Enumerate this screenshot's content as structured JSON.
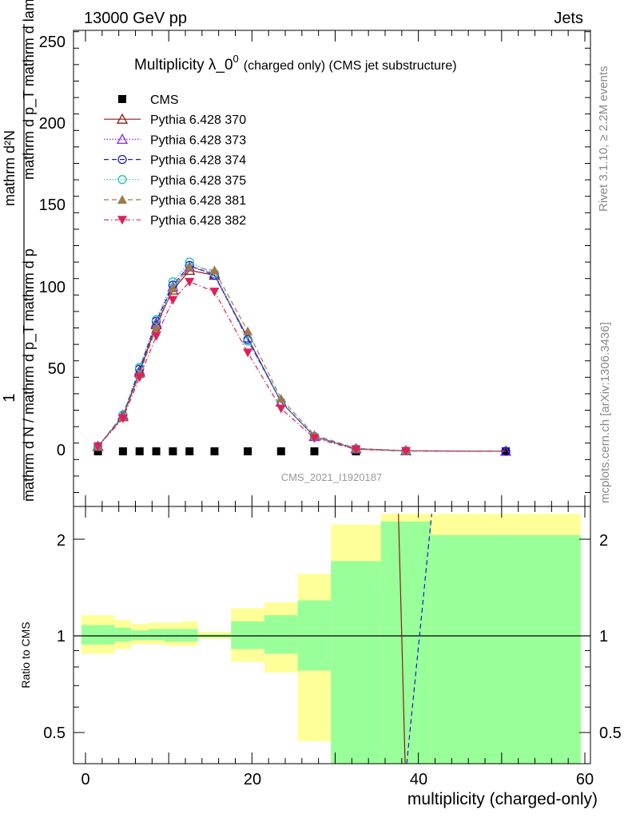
{
  "header": {
    "left": "13000 GeV pp",
    "right": "Jets"
  },
  "side": {
    "rivet": "Rivet 3.1.10, ≥ 2.2M events",
    "mcplots": "mcplots.cern.ch [arXiv:1306.3436]"
  },
  "main": {
    "title_main": "Multiplicity λ_0",
    "title_sup": "0",
    "title_rest": "(charged only) (CMS jet substructure)",
    "ylabel_num": "1",
    "ylabel_den": "mathrm d N / mathrm d p_T mathrm d p",
    "ylabel_num2": "mathrm d²N",
    "ylabel_num3": "mathrm d p_T mathrm d lambda",
    "watermark": "CMS_2021_I1920187",
    "yticks": [
      "0",
      "50",
      "100",
      "150",
      "200",
      "250"
    ]
  },
  "ratio": {
    "ylabel": "Ratio to CMS",
    "yticks": [
      "0.5",
      "1",
      "2"
    ],
    "xticks": [
      "0",
      "20",
      "40",
      "60"
    ],
    "xlabel": "multiplicity (charged-only)"
  },
  "colors": {
    "cms": "#000000",
    "p370": "#8b1a1a",
    "p373": "#8a2be2",
    "p374": "#1a1acd",
    "p375": "#20c0b0",
    "p381": "#a0784a",
    "p382": "#e0205a",
    "band_outer": "#ffff99",
    "band_inner": "#99ff99"
  },
  "chart_data": [
    {
      "type": "line",
      "xlim": [
        -1,
        60
      ],
      "ylim": [
        -30,
        260
      ],
      "series": [
        {
          "name": "CMS",
          "style": "square",
          "x": [
            1.5,
            4.5,
            6.5,
            8.5,
            10.5,
            12.5,
            15.5,
            19.5,
            23.5,
            27.5,
            32.5,
            38.5,
            50.5
          ],
          "y": [
            0,
            0,
            0,
            0,
            0,
            0,
            0,
            0,
            0,
            0,
            0,
            0,
            0
          ]
        },
        {
          "name": "Pythia 6.428 370",
          "style": "tri-open",
          "x": [
            1.5,
            4.5,
            6.5,
            8.5,
            10.5,
            12.5,
            15.5,
            19.5,
            23.5,
            27.5,
            32.5,
            38.5,
            50.5
          ],
          "y": [
            3,
            21,
            48,
            77,
            98,
            110,
            107,
            69,
            30,
            9,
            1.5,
            0.3,
            0.05
          ]
        },
        {
          "name": "Pythia 6.428 373",
          "style": "tri-open",
          "x": [
            1.5,
            4.5,
            6.5,
            8.5,
            10.5,
            12.5,
            15.5,
            19.5,
            23.5,
            27.5,
            32.5,
            38.5,
            50.5
          ],
          "y": [
            3,
            22,
            49,
            78,
            100,
            112,
            108,
            69,
            30,
            9,
            1.5,
            0.3,
            0.05
          ]
        },
        {
          "name": "Pythia 6.428 374",
          "style": "circle-open",
          "x": [
            1.5,
            4.5,
            6.5,
            8.5,
            10.5,
            12.5,
            15.5,
            19.5,
            23.5,
            27.5,
            32.5,
            38.5,
            50.5
          ],
          "y": [
            3,
            22,
            50,
            79,
            101,
            113,
            107,
            68,
            30,
            9,
            1.5,
            0.3,
            0.05
          ]
        },
        {
          "name": "Pythia 6.428 375",
          "style": "circle-open",
          "x": [
            1.5,
            4.5,
            6.5,
            8.5,
            10.5,
            12.5,
            15.5,
            19.5,
            23.5,
            27.5,
            32.5,
            38.5,
            50.5
          ],
          "y": [
            3,
            22,
            51,
            80,
            103,
            115,
            108,
            67,
            30,
            9,
            1.5,
            0.3,
            0.05
          ]
        },
        {
          "name": "Pythia 6.428 381",
          "style": "tri-filled",
          "x": [
            1.5,
            4.5,
            6.5,
            8.5,
            10.5,
            12.5,
            15.5,
            19.5,
            23.5,
            27.5,
            32.5,
            38.5,
            50.5
          ],
          "y": [
            3,
            21,
            47,
            75,
            99,
            112,
            110,
            73,
            32,
            10,
            1.8,
            0.4,
            0.05
          ]
        },
        {
          "name": "Pythia 6.428 382",
          "style": "tri-down-filled",
          "x": [
            1.5,
            4.5,
            6.5,
            8.5,
            10.5,
            12.5,
            15.5,
            19.5,
            23.5,
            27.5,
            32.5,
            38.5,
            50.5
          ],
          "y": [
            3,
            20,
            45,
            70,
            92,
            103,
            97,
            60,
            26,
            8,
            1.2,
            0.2,
            0.05
          ]
        }
      ],
      "legend": "top-left"
    },
    {
      "type": "area",
      "xlim": [
        -1,
        60
      ],
      "ylog": true,
      "ylim": [
        0.4,
        2.4
      ],
      "bands": [
        {
          "x0": -0.5,
          "x1": 3.5,
          "outer": [
            0.88,
            1.16
          ],
          "inner": [
            0.94,
            1.08
          ]
        },
        {
          "x0": 3.5,
          "x1": 5.5,
          "outer": [
            0.91,
            1.12
          ],
          "inner": [
            0.96,
            1.06
          ]
        },
        {
          "x0": 5.5,
          "x1": 7.5,
          "outer": [
            0.94,
            1.09
          ],
          "inner": [
            0.97,
            1.04
          ]
        },
        {
          "x0": 7.5,
          "x1": 9.5,
          "outer": [
            0.94,
            1.1
          ],
          "inner": [
            0.97,
            1.05
          ]
        },
        {
          "x0": 9.5,
          "x1": 11.5,
          "outer": [
            0.93,
            1.1
          ],
          "inner": [
            0.96,
            1.05
          ]
        },
        {
          "x0": 11.5,
          "x1": 13.5,
          "outer": [
            0.93,
            1.11
          ],
          "inner": [
            0.96,
            1.05
          ]
        },
        {
          "x0": 13.5,
          "x1": 17.5,
          "outer": [
            0.98,
            1.03
          ],
          "inner": [
            0.99,
            1.01
          ]
        },
        {
          "x0": 17.5,
          "x1": 21.5,
          "outer": [
            0.83,
            1.22
          ],
          "inner": [
            0.91,
            1.11
          ]
        },
        {
          "x0": 21.5,
          "x1": 25.5,
          "outer": [
            0.77,
            1.27
          ],
          "inner": [
            0.88,
            1.16
          ]
        },
        {
          "x0": 25.5,
          "x1": 29.5,
          "outer": [
            0.47,
            1.56
          ],
          "inner": [
            0.78,
            1.29
          ]
        },
        {
          "x0": 29.5,
          "x1": 35.5,
          "outer": [
            0.4,
            2.22
          ],
          "inner": [
            0.4,
            1.71
          ]
        },
        {
          "x0": 35.5,
          "x1": 41.5,
          "outer": [
            0.4,
            2.4
          ],
          "inner": [
            0.4,
            2.27
          ]
        },
        {
          "x0": 41.5,
          "x1": 59.5,
          "outer": [
            0.4,
            2.4
          ],
          "inner": [
            0.4,
            2.06
          ]
        }
      ],
      "series": [
        {
          "name": "Pythia 6.428 370",
          "x": [
            37.6,
            38.0,
            38.4
          ],
          "y": [
            2.4,
            1.0,
            0.4
          ]
        },
        {
          "name": "Pythia 6.428 374",
          "x": [
            38.6,
            41.6
          ],
          "y": [
            0.4,
            2.4
          ]
        }
      ],
      "reference": 1
    }
  ]
}
